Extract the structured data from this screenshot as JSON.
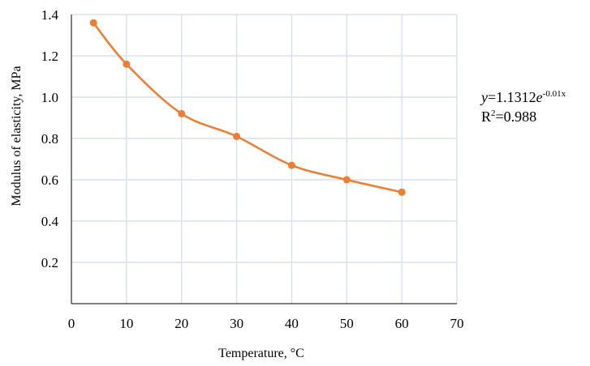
{
  "chart_data": {
    "type": "line",
    "title": "",
    "xlabel": "Temperature, ",
    "xlabel_unit": "°C",
    "ylabel": "Modulus of elasticity, MPa",
    "xlim": [
      0,
      70
    ],
    "ylim": [
      0,
      1.4
    ],
    "xticks": [
      "0",
      "10",
      "20",
      "30",
      "40",
      "50",
      "60",
      "70"
    ],
    "yticks": [
      "0.2",
      "0.4",
      "0.6",
      "0.8",
      "1.0",
      "1.2",
      "1.4"
    ],
    "grid": true,
    "legend": "none",
    "series": [
      {
        "color": "#ED7D31",
        "x": [
          4,
          10,
          20,
          30,
          40,
          50,
          60
        ],
        "y": [
          1.36,
          1.16,
          0.92,
          0.81,
          0.67,
          0.6,
          0.54
        ]
      }
    ]
  },
  "annotation": {
    "eq_var": "y",
    "eq_mid": "=1.1312",
    "eq_base": "e",
    "eq_exp": "-0.01x",
    "r2_r": "R",
    "r2_sup": "2",
    "r2_val": "=0.988"
  },
  "colors": {
    "grid": "#D6E2EF",
    "axis": "#000000",
    "series": "#ED7D31"
  }
}
